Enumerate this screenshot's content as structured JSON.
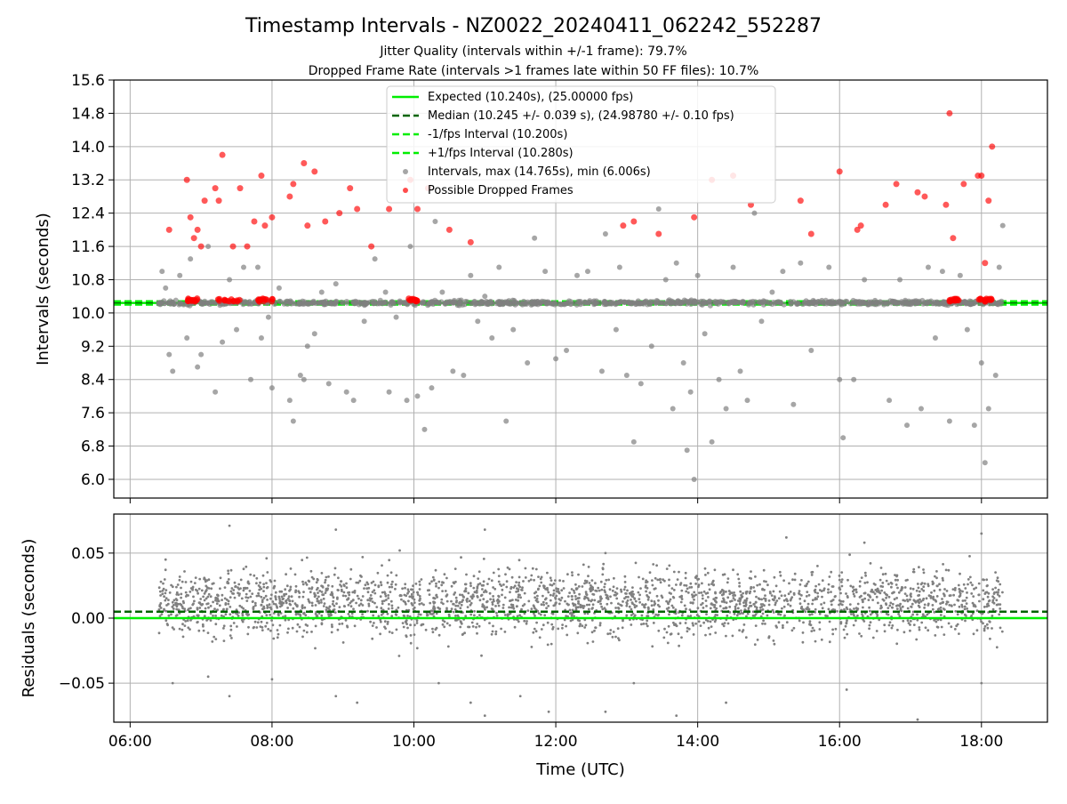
{
  "figure": {
    "title": "Timestamp Intervals - NZ0022_20240411_062242_552287",
    "subtitle_1": "Jitter Quality (intervals within +/-1 frame): 79.7%",
    "subtitle_2": "Dropped Frame Rate (intervals >1 frames late within 50 FF files): 10.7%"
  },
  "colors": {
    "expected": "#00ee00",
    "median": "#006400",
    "intervals": "#808080",
    "dropped": "#ff0000",
    "grid": "#b0b0b0"
  },
  "chart_data": [
    {
      "type": "scatter",
      "panel": "top",
      "ylabel": "Intervals (seconds)",
      "xlim_hours": [
        5.77,
        18.93
      ],
      "ylim": [
        5.55,
        15.6
      ],
      "yticks": [
        "6.0",
        "6.8",
        "7.6",
        "8.4",
        "9.2",
        "10.0",
        "10.8",
        "11.6",
        "12.4",
        "13.2",
        "14.0",
        "14.8",
        "15.6"
      ],
      "grid": true,
      "legend_position": "top-center",
      "reference_lines": [
        {
          "label": "Expected (10.240s), (25.00000 fps)",
          "y": 10.24,
          "style": "solid",
          "color": "#00ee00"
        },
        {
          "label": "Median (10.245 +/- 0.039 s), (24.98780 +/- 0.10 fps)",
          "y": 10.245,
          "style": "dashed",
          "color": "#006400"
        },
        {
          "label": "-1/fps Interval (10.200s)",
          "y": 10.2,
          "style": "dashed",
          "color": "#00ee00"
        },
        {
          "label": "+1/fps Interval (10.280s)",
          "y": 10.28,
          "style": "dashed",
          "color": "#00ee00"
        }
      ],
      "series": [
        {
          "name": "Intervals, max (14.765s), min (6.006s)",
          "color": "#808080",
          "points": [
            [
              6.45,
              11.0
            ],
            [
              6.5,
              10.6
            ],
            [
              6.55,
              9.0
            ],
            [
              6.6,
              8.6
            ],
            [
              6.7,
              10.9
            ],
            [
              6.8,
              9.4
            ],
            [
              6.85,
              11.3
            ],
            [
              6.95,
              8.7
            ],
            [
              7.0,
              9.0
            ],
            [
              7.1,
              11.6
            ],
            [
              7.2,
              8.1
            ],
            [
              7.3,
              9.3
            ],
            [
              7.4,
              10.8
            ],
            [
              7.5,
              9.6
            ],
            [
              7.6,
              11.1
            ],
            [
              7.7,
              8.4
            ],
            [
              7.8,
              11.1
            ],
            [
              7.85,
              9.4
            ],
            [
              7.95,
              9.9
            ],
            [
              8.0,
              8.2
            ],
            [
              8.1,
              10.6
            ],
            [
              8.25,
              7.9
            ],
            [
              8.3,
              7.4
            ],
            [
              8.4,
              8.5
            ],
            [
              8.45,
              8.4
            ],
            [
              8.5,
              9.2
            ],
            [
              8.6,
              9.5
            ],
            [
              8.7,
              10.5
            ],
            [
              8.8,
              8.3
            ],
            [
              8.9,
              10.7
            ],
            [
              9.05,
              8.1
            ],
            [
              9.15,
              7.9
            ],
            [
              9.3,
              9.8
            ],
            [
              9.45,
              11.3
            ],
            [
              9.6,
              10.5
            ],
            [
              9.65,
              8.1
            ],
            [
              9.75,
              9.9
            ],
            [
              9.9,
              7.9
            ],
            [
              9.95,
              11.6
            ],
            [
              10.05,
              8.0
            ],
            [
              10.15,
              7.2
            ],
            [
              10.25,
              8.2
            ],
            [
              10.3,
              12.2
            ],
            [
              10.4,
              10.5
            ],
            [
              10.55,
              8.6
            ],
            [
              10.7,
              8.5
            ],
            [
              10.8,
              10.9
            ],
            [
              10.9,
              9.8
            ],
            [
              11.0,
              10.4
            ],
            [
              11.1,
              9.4
            ],
            [
              11.2,
              11.1
            ],
            [
              11.3,
              7.4
            ],
            [
              11.4,
              9.6
            ],
            [
              11.6,
              8.8
            ],
            [
              11.7,
              11.8
            ],
            [
              11.85,
              11.0
            ],
            [
              12.0,
              8.9
            ],
            [
              12.15,
              9.1
            ],
            [
              12.3,
              10.9
            ],
            [
              12.45,
              11.0
            ],
            [
              12.65,
              8.6
            ],
            [
              12.7,
              11.9
            ],
            [
              12.85,
              9.6
            ],
            [
              12.9,
              11.1
            ],
            [
              13.0,
              8.5
            ],
            [
              13.1,
              6.9
            ],
            [
              13.2,
              8.3
            ],
            [
              13.35,
              9.2
            ],
            [
              13.45,
              12.5
            ],
            [
              13.55,
              10.8
            ],
            [
              13.65,
              7.7
            ],
            [
              13.7,
              11.2
            ],
            [
              13.8,
              8.8
            ],
            [
              13.85,
              6.7
            ],
            [
              13.9,
              8.1
            ],
            [
              13.95,
              6.0
            ],
            [
              14.0,
              10.9
            ],
            [
              14.1,
              9.5
            ],
            [
              14.2,
              6.9
            ],
            [
              14.3,
              8.4
            ],
            [
              14.4,
              7.7
            ],
            [
              14.5,
              11.1
            ],
            [
              14.6,
              8.6
            ],
            [
              14.7,
              7.9
            ],
            [
              14.8,
              12.4
            ],
            [
              14.9,
              9.8
            ],
            [
              15.05,
              10.5
            ],
            [
              15.2,
              11.0
            ],
            [
              15.35,
              7.8
            ],
            [
              15.45,
              11.2
            ],
            [
              15.6,
              9.1
            ],
            [
              15.75,
              10.3
            ],
            [
              15.85,
              11.1
            ],
            [
              16.0,
              8.4
            ],
            [
              16.05,
              7.0
            ],
            [
              16.2,
              8.4
            ],
            [
              16.35,
              10.8
            ],
            [
              16.5,
              10.3
            ],
            [
              16.7,
              7.9
            ],
            [
              16.85,
              10.8
            ],
            [
              16.95,
              7.3
            ],
            [
              17.15,
              7.7
            ],
            [
              17.25,
              11.1
            ],
            [
              17.35,
              9.4
            ],
            [
              17.45,
              11.0
            ],
            [
              17.55,
              7.4
            ],
            [
              17.7,
              10.9
            ],
            [
              17.8,
              9.6
            ],
            [
              17.9,
              7.3
            ],
            [
              18.0,
              8.8
            ],
            [
              18.05,
              6.4
            ],
            [
              18.1,
              7.7
            ],
            [
              18.2,
              8.5
            ],
            [
              18.25,
              11.1
            ],
            [
              18.3,
              12.1
            ]
          ]
        },
        {
          "name": "Possible Dropped Frames",
          "color": "#ff0000",
          "points": [
            [
              6.55,
              12.0
            ],
            [
              6.8,
              13.2
            ],
            [
              6.85,
              12.3
            ],
            [
              6.9,
              11.8
            ],
            [
              6.95,
              12.0
            ],
            [
              7.0,
              11.6
            ],
            [
              7.05,
              12.7
            ],
            [
              7.2,
              13.0
            ],
            [
              7.25,
              12.7
            ],
            [
              7.3,
              13.8
            ],
            [
              7.45,
              11.6
            ],
            [
              7.55,
              13.0
            ],
            [
              7.65,
              11.6
            ],
            [
              7.75,
              12.2
            ],
            [
              7.85,
              13.3
            ],
            [
              7.9,
              12.1
            ],
            [
              8.0,
              12.3
            ],
            [
              8.25,
              12.8
            ],
            [
              8.3,
              13.1
            ],
            [
              8.45,
              13.6
            ],
            [
              8.5,
              12.1
            ],
            [
              8.6,
              13.4
            ],
            [
              8.75,
              12.2
            ],
            [
              8.95,
              12.4
            ],
            [
              9.1,
              13.0
            ],
            [
              9.2,
              12.5
            ],
            [
              9.4,
              11.6
            ],
            [
              9.65,
              12.5
            ],
            [
              9.95,
              13.2
            ],
            [
              10.05,
              12.5
            ],
            [
              10.2,
              13.0
            ],
            [
              10.5,
              12.0
            ],
            [
              10.8,
              11.7
            ],
            [
              12.95,
              12.1
            ],
            [
              13.1,
              12.2
            ],
            [
              13.45,
              11.9
            ],
            [
              13.95,
              12.3
            ],
            [
              14.2,
              13.2
            ],
            [
              14.5,
              13.3
            ],
            [
              14.75,
              12.6
            ],
            [
              15.45,
              12.7
            ],
            [
              15.6,
              11.9
            ],
            [
              16.0,
              13.4
            ],
            [
              16.25,
              12.0
            ],
            [
              16.3,
              12.1
            ],
            [
              16.65,
              12.6
            ],
            [
              16.8,
              13.1
            ],
            [
              17.1,
              12.9
            ],
            [
              17.2,
              12.8
            ],
            [
              17.5,
              12.6
            ],
            [
              17.55,
              14.8
            ],
            [
              17.6,
              11.8
            ],
            [
              17.75,
              13.1
            ],
            [
              17.95,
              13.3
            ],
            [
              18.0,
              13.3
            ],
            [
              18.05,
              11.2
            ],
            [
              18.1,
              12.7
            ],
            [
              18.15,
              14.0
            ]
          ]
        }
      ]
    },
    {
      "type": "scatter",
      "panel": "bottom",
      "xlabel": "Time (UTC)",
      "ylabel": "Residuals (seconds)",
      "xlim_hours": [
        5.77,
        18.93
      ],
      "xticks": [
        "06:00",
        "08:00",
        "10:00",
        "12:00",
        "14:00",
        "16:00",
        "18:00"
      ],
      "ylim": [
        -0.08,
        0.08
      ],
      "yticks": [
        "0.05",
        "0.00",
        "−0.05"
      ],
      "grid": true,
      "reference_lines": [
        {
          "y": 0.0,
          "style": "solid",
          "color": "#00ee00"
        },
        {
          "y": 0.005,
          "style": "dashed",
          "color": "#006400"
        }
      ],
      "series": [
        {
          "name": "Residuals",
          "color": "#808080",
          "time_range_hours": [
            6.4,
            18.3
          ],
          "points": [
            [
              7.4,
              0.071
            ],
            [
              8.9,
              0.068
            ],
            [
              11.0,
              0.068
            ],
            [
              15.25,
              0.062
            ],
            [
              18.0,
              0.065
            ],
            [
              6.5,
              0.045
            ],
            [
              9.8,
              0.052
            ],
            [
              12.7,
              0.05
            ],
            [
              16.35,
              0.058
            ],
            [
              6.6,
              -0.05
            ],
            [
              7.1,
              -0.045
            ],
            [
              7.4,
              -0.06
            ],
            [
              8.0,
              -0.047
            ],
            [
              8.9,
              -0.06
            ],
            [
              9.2,
              -0.065
            ],
            [
              10.35,
              -0.05
            ],
            [
              10.8,
              -0.065
            ],
            [
              11.0,
              -0.075
            ],
            [
              11.5,
              -0.06
            ],
            [
              11.9,
              -0.072
            ],
            [
              12.7,
              -0.072
            ],
            [
              13.1,
              -0.05
            ],
            [
              13.7,
              -0.075
            ],
            [
              14.4,
              -0.065
            ],
            [
              16.1,
              -0.055
            ],
            [
              17.1,
              -0.078
            ],
            [
              18.0,
              -0.05
            ]
          ]
        }
      ]
    }
  ]
}
